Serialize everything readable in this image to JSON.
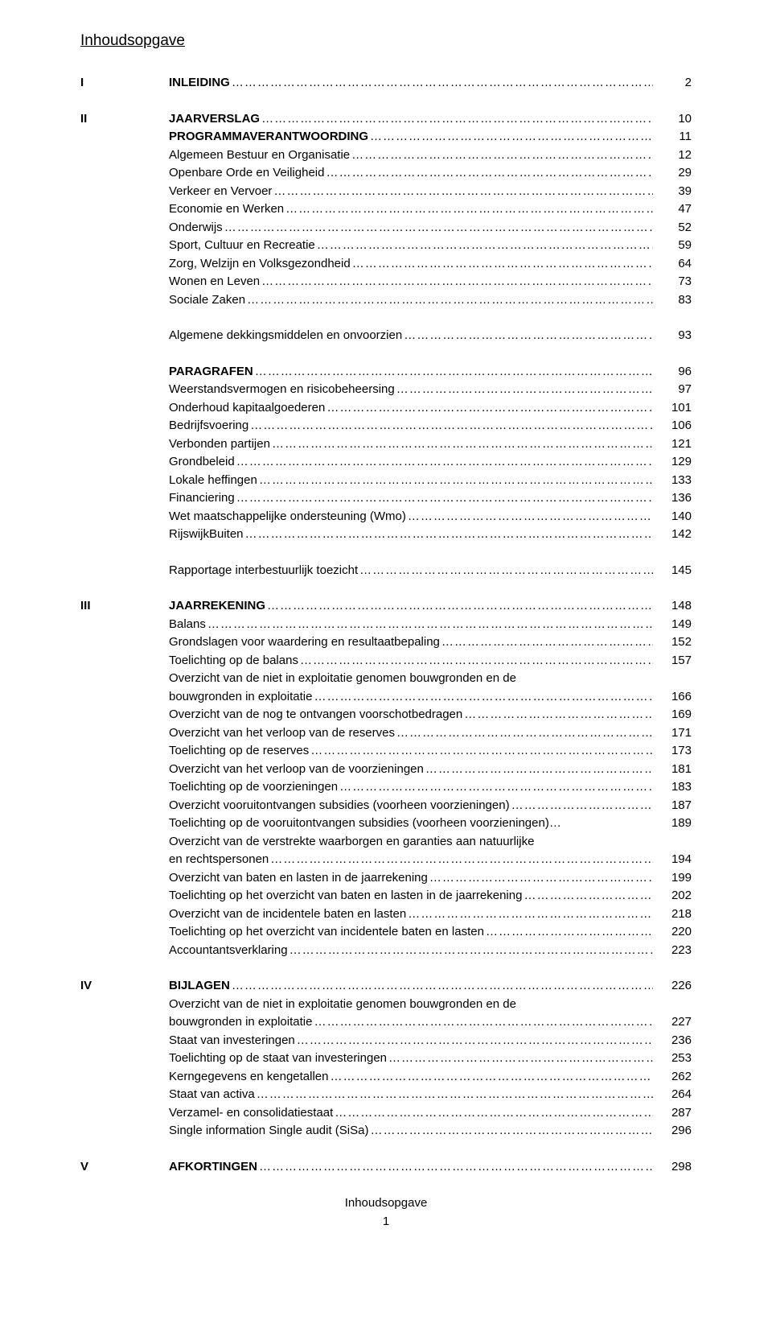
{
  "title": "Inhoudsopgave",
  "footer_text": "Inhoudsopgave",
  "footer_page": "1",
  "sections": {
    "I": {
      "roman": "I",
      "heading": "INLEIDING",
      "page": "2"
    },
    "II": {
      "roman": "II",
      "heading": "JAARVERSLAG",
      "page": "10",
      "groupA": [
        {
          "label": "PROGRAMMAVERANTWOORDING",
          "page": "11",
          "bold": true
        },
        {
          "label": "Algemeen Bestuur en Organisatie",
          "page": "12"
        },
        {
          "label": "Openbare Orde en Veiligheid",
          "page": "29"
        },
        {
          "label": "Verkeer en Vervoer",
          "page": "39"
        },
        {
          "label": "Economie en Werken",
          "page": "47"
        },
        {
          "label": "Onderwijs",
          "page": "52"
        },
        {
          "label": "Sport, Cultuur en Recreatie",
          "page": "59"
        },
        {
          "label": "Zorg, Welzijn en Volksgezondheid",
          "page": "64"
        },
        {
          "label": "Wonen en Leven",
          "page": "73"
        },
        {
          "label": "Sociale Zaken",
          "page": "83"
        }
      ],
      "groupB": [
        {
          "label": "Algemene dekkingsmiddelen en onvoorzien",
          "page": "93"
        }
      ],
      "groupC": [
        {
          "label": "PARAGRAFEN",
          "page": "96",
          "bold": true
        },
        {
          "label": "Weerstandsvermogen en risicobeheersing",
          "page": "97"
        },
        {
          "label": "Onderhoud kapitaalgoederen",
          "page": "101"
        },
        {
          "label": "Bedrijfsvoering",
          "page": "106"
        },
        {
          "label": "Verbonden partijen",
          "page": "121"
        },
        {
          "label": "Grondbeleid",
          "page": "129"
        },
        {
          "label": "Lokale heffingen",
          "page": "133"
        },
        {
          "label": "Financiering",
          "page": "136"
        },
        {
          "label": "Wet maatschappelijke ondersteuning (Wmo)",
          "page": "140"
        },
        {
          "label": "RijswijkBuiten",
          "page": "142"
        }
      ],
      "groupD": [
        {
          "label": "Rapportage interbestuurlijk toezicht",
          "page": "145"
        }
      ]
    },
    "III": {
      "roman": "III",
      "heading": "JAARREKENING",
      "page": "148",
      "items": [
        {
          "label": "Balans",
          "page": "149"
        },
        {
          "label": "Grondslagen voor waardering en resultaatbepaling",
          "page": "152"
        },
        {
          "label": "Toelichting op de balans",
          "page": "157"
        },
        {
          "multi_top": "Overzicht van de niet in exploitatie genomen bouwgronden en de",
          "multi_bottom": "bouwgronden in exploitatie",
          "page": "166"
        },
        {
          "label": "Overzicht van de nog te ontvangen voorschotbedragen",
          "page": "169"
        },
        {
          "label": "Overzicht van het verloop van de reserves",
          "page": "171"
        },
        {
          "label": "Toelichting op de reserves",
          "page": "173"
        },
        {
          "label": "Overzicht van het verloop van de voorzieningen",
          "page": "181"
        },
        {
          "label": "Toelichting op de voorzieningen",
          "page": "183"
        },
        {
          "label": "Overzicht vooruitontvangen subsidies (voorheen voorzieningen)",
          "page": "187"
        },
        {
          "label": "Toelichting op de vooruitontvangen subsidies (voorheen voorzieningen)",
          "page": "189",
          "no_leader": true
        },
        {
          "multi_top": "Overzicht van de verstrekte waarborgen en garanties aan natuurlijke",
          "multi_bottom": "en rechtspersonen",
          "page": "194"
        },
        {
          "label": "Overzicht van baten en lasten in de jaarrekening",
          "page": "199"
        },
        {
          "label": "Toelichting op het overzicht van baten en lasten in de jaarrekening",
          "page": "202"
        },
        {
          "label": "Overzicht van de incidentele baten en lasten",
          "page": "218"
        },
        {
          "label": "Toelichting op het overzicht van incidentele baten en lasten",
          "page": "220"
        },
        {
          "label": "Accountantsverklaring",
          "page": "223"
        }
      ]
    },
    "IV": {
      "roman": "IV",
      "heading": "BIJLAGEN",
      "page": "226",
      "items": [
        {
          "multi_top": "Overzicht van de niet in exploitatie genomen bouwgronden en de",
          "multi_bottom": "bouwgronden in exploitatie",
          "page": "227"
        },
        {
          "label": "Staat van investeringen",
          "page": "236"
        },
        {
          "label": "Toelichting op de staat van investeringen",
          "page": "253"
        },
        {
          "label": "Kerngegevens en kengetallen",
          "page": "262"
        },
        {
          "label": "Staat van activa",
          "page": "264"
        },
        {
          "label": "Verzamel- en consolidatiestaat",
          "page": "287"
        },
        {
          "label": "Single information Single audit (SiSa)",
          "page": "296"
        }
      ]
    },
    "V": {
      "roman": "V",
      "heading": "AFKORTINGEN",
      "page": "298"
    }
  }
}
